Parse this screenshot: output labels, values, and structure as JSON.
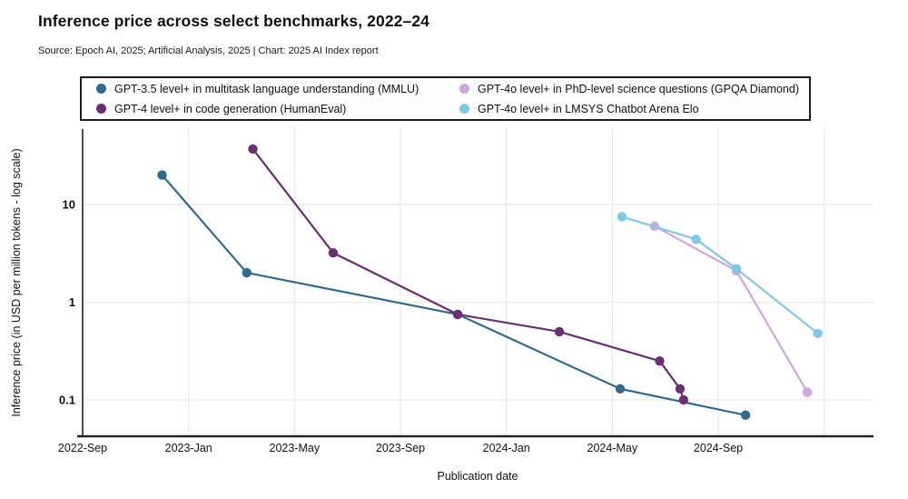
{
  "header": {
    "title": "Inference price across select benchmarks, 2022–24",
    "source": "Source: Epoch AI, 2025; Artificial Analysis, 2025 | Chart: 2025 AI Index report"
  },
  "legend": {
    "items": [
      {
        "label": "GPT-3.5 level+ in multitask language understanding (MMLU)",
        "color": "#2f6b8e"
      },
      {
        "label": "GPT-4 level+ in code generation (HumanEval)",
        "color": "#6b2e70"
      },
      {
        "label": "GPT-4o level+ in PhD-level science questions (GPQA Diamond)",
        "color": "#cda7de"
      },
      {
        "label": "GPT-4o level+ in LMSYS Chatbot Arena Elo",
        "color": "#7fc8e8"
      }
    ]
  },
  "chart_data": {
    "type": "line",
    "y_scale": "log",
    "grid": true,
    "title": "Inference price across select benchmarks, 2022–24",
    "xlabel": "Publication date",
    "ylabel": "Inference price (in USD per million tokens - log scale)",
    "ylim": [
      0.04,
      60
    ],
    "x_range": [
      "2022-09",
      "2025-02"
    ],
    "y_ticks": [
      10,
      1,
      0.1
    ],
    "x_ticks": [
      {
        "label": "2022-Sep",
        "date": "2022-09-01"
      },
      {
        "label": "2023-Jan",
        "date": "2023-01-01"
      },
      {
        "label": "2023-May",
        "date": "2023-05-01"
      },
      {
        "label": "2023-Sep",
        "date": "2023-09-01"
      },
      {
        "label": "2024-Jan",
        "date": "2024-01-01"
      },
      {
        "label": "2024-May",
        "date": "2024-05-01"
      },
      {
        "label": "2024-Sep",
        "date": "2024-09-01"
      },
      {
        "label": "",
        "date": "2025-01-01"
      }
    ],
    "series": [
      {
        "name": "GPT-3.5 level+ in multitask language understanding (MMLU)",
        "color": "#2f6b8e",
        "points": [
          {
            "date": "2022-12-01",
            "value": 20
          },
          {
            "date": "2023-03-07",
            "value": 2
          },
          {
            "date": "2023-11-06",
            "value": 0.75
          },
          {
            "date": "2024-05-10",
            "value": 0.13
          },
          {
            "date": "2024-10-02",
            "value": 0.07
          }
        ]
      },
      {
        "name": "GPT-4 level+ in code generation (HumanEval)",
        "color": "#6b2e70",
        "points": [
          {
            "date": "2023-03-14",
            "value": 37
          },
          {
            "date": "2023-06-15",
            "value": 3.2
          },
          {
            "date": "2023-11-06",
            "value": 0.75
          },
          {
            "date": "2024-03-01",
            "value": 0.5
          },
          {
            "date": "2024-06-25",
            "value": 0.25
          },
          {
            "date": "2024-07-18",
            "value": 0.13
          },
          {
            "date": "2024-07-22",
            "value": 0.1
          }
        ]
      },
      {
        "name": "GPT-4o level+ in PhD-level science questions (GPQA Diamond)",
        "color": "#cda7de",
        "points": [
          {
            "date": "2024-06-19",
            "value": 6
          },
          {
            "date": "2024-09-22",
            "value": 2.1
          },
          {
            "date": "2024-12-12",
            "value": 0.12
          }
        ]
      },
      {
        "name": "GPT-4o level+ in LMSYS Chatbot Arena Elo",
        "color": "#7fc8e8",
        "points": [
          {
            "date": "2024-05-12",
            "value": 7.5
          },
          {
            "date": "2024-08-06",
            "value": 4.4
          },
          {
            "date": "2024-09-22",
            "value": 2.2
          },
          {
            "date": "2024-12-24",
            "value": 0.48
          }
        ]
      }
    ]
  }
}
